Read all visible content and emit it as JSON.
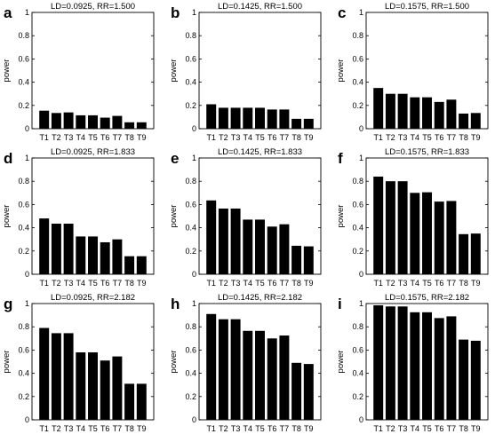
{
  "chart_data": [
    {
      "letter": "a",
      "type": "bar",
      "title": "LD=0.0925, RR=1.500",
      "ylabel": "power",
      "ylim": [
        0,
        1
      ],
      "yticks": [
        "0",
        "0.2",
        "0.4",
        "0.6",
        "0.8",
        "1"
      ],
      "categories": [
        "T1",
        "T2",
        "T3",
        "T4",
        "T5",
        "T6",
        "T7",
        "T8",
        "T9"
      ],
      "values": [
        0.155,
        0.135,
        0.14,
        0.115,
        0.115,
        0.095,
        0.11,
        0.055,
        0.055
      ]
    },
    {
      "letter": "b",
      "type": "bar",
      "title": "LD=0.1425, RR=1.500",
      "ylabel": "power",
      "ylim": [
        0,
        1
      ],
      "yticks": [
        "0",
        "0.2",
        "0.4",
        "0.6",
        "0.8",
        "1"
      ],
      "categories": [
        "T1",
        "T2",
        "T3",
        "T4",
        "T5",
        "T6",
        "T7",
        "T8",
        "T9"
      ],
      "values": [
        0.21,
        0.18,
        0.18,
        0.18,
        0.18,
        0.165,
        0.165,
        0.085,
        0.085
      ]
    },
    {
      "letter": "c",
      "type": "bar",
      "title": "LD=0.1575, RR=1.500",
      "ylabel": "power",
      "ylim": [
        0,
        1
      ],
      "yticks": [
        "0",
        "0.2",
        "0.4",
        "0.6",
        "0.8",
        "1"
      ],
      "categories": [
        "T1",
        "T2",
        "T3",
        "T4",
        "T5",
        "T6",
        "T7",
        "T8",
        "T9"
      ],
      "values": [
        0.35,
        0.3,
        0.3,
        0.27,
        0.27,
        0.23,
        0.25,
        0.13,
        0.135
      ]
    },
    {
      "letter": "d",
      "type": "bar",
      "title": "LD=0.0925, RR=1.833",
      "ylabel": "power",
      "ylim": [
        0,
        1
      ],
      "yticks": [
        "0",
        "0.2",
        "0.4",
        "0.6",
        "0.8",
        "1"
      ],
      "categories": [
        "T1",
        "T2",
        "T3",
        "T4",
        "T5",
        "T6",
        "T7",
        "T8",
        "T9"
      ],
      "values": [
        0.48,
        0.435,
        0.435,
        0.325,
        0.325,
        0.275,
        0.3,
        0.155,
        0.155
      ]
    },
    {
      "letter": "e",
      "type": "bar",
      "title": "LD=0.1425, RR=1.833",
      "ylabel": "power",
      "ylim": [
        0,
        1
      ],
      "yticks": [
        "0",
        "0.2",
        "0.4",
        "0.6",
        "0.8",
        "1"
      ],
      "categories": [
        "T1",
        "T2",
        "T3",
        "T4",
        "T5",
        "T6",
        "T7",
        "T8",
        "T9"
      ],
      "values": [
        0.635,
        0.565,
        0.565,
        0.47,
        0.47,
        0.41,
        0.43,
        0.245,
        0.24
      ]
    },
    {
      "letter": "f",
      "type": "bar",
      "title": "LD=0.1575, RR=1.833",
      "ylabel": "power",
      "ylim": [
        0,
        1
      ],
      "yticks": [
        "0",
        "0.2",
        "0.4",
        "0.6",
        "0.8",
        "1"
      ],
      "categories": [
        "T1",
        "T2",
        "T3",
        "T4",
        "T5",
        "T6",
        "T7",
        "T8",
        "T9"
      ],
      "values": [
        0.84,
        0.8,
        0.8,
        0.7,
        0.705,
        0.625,
        0.63,
        0.345,
        0.35
      ]
    },
    {
      "letter": "g",
      "type": "bar",
      "title": "LD=0.0925, RR=2.182",
      "ylabel": "power",
      "ylim": [
        0,
        1
      ],
      "yticks": [
        "0",
        "0.2",
        "0.4",
        "0.6",
        "0.8",
        "1"
      ],
      "categories": [
        "T1",
        "T2",
        "T3",
        "T4",
        "T5",
        "T6",
        "T7",
        "T8",
        "T9"
      ],
      "values": [
        0.79,
        0.745,
        0.745,
        0.58,
        0.58,
        0.51,
        0.545,
        0.31,
        0.31
      ]
    },
    {
      "letter": "h",
      "type": "bar",
      "title": "LD=0.1425, RR=2.182",
      "ylabel": "power",
      "ylim": [
        0,
        1
      ],
      "yticks": [
        "0",
        "0.2",
        "0.4",
        "0.6",
        "0.8",
        "1"
      ],
      "categories": [
        "T1",
        "T2",
        "T3",
        "T4",
        "T5",
        "T6",
        "T7",
        "T8",
        "T9"
      ],
      "values": [
        0.91,
        0.865,
        0.865,
        0.765,
        0.765,
        0.7,
        0.725,
        0.49,
        0.48
      ]
    },
    {
      "letter": "i",
      "type": "bar",
      "title": "LD=0.1575, RR=2.182",
      "ylabel": "power",
      "ylim": [
        0,
        1
      ],
      "yticks": [
        "0",
        "0.2",
        "0.4",
        "0.6",
        "0.8",
        "1"
      ],
      "categories": [
        "T1",
        "T2",
        "T3",
        "T4",
        "T5",
        "T6",
        "T7",
        "T8",
        "T9"
      ],
      "values": [
        0.985,
        0.975,
        0.975,
        0.925,
        0.925,
        0.875,
        0.89,
        0.69,
        0.68
      ]
    }
  ]
}
